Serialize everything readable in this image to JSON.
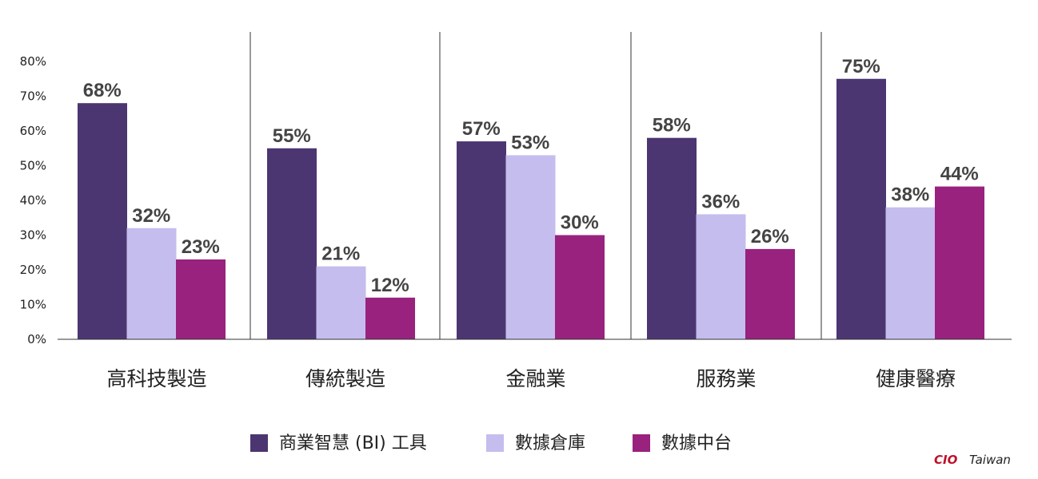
{
  "chart_data": {
    "type": "bar",
    "categories": [
      "高科技製造",
      "傳統製造",
      "金融業",
      "服務業",
      "健康醫療"
    ],
    "series": [
      {
        "name": "商業智慧 (BI) 工具",
        "color": "#4b3671",
        "values": [
          68,
          55,
          57,
          58,
          75
        ]
      },
      {
        "name": "數據倉庫",
        "color": "#c5bdee",
        "values": [
          32,
          21,
          53,
          36,
          38
        ]
      },
      {
        "name": "數據中台",
        "color": "#98227d",
        "values": [
          23,
          12,
          30,
          26,
          44
        ]
      }
    ],
    "y_ticks": [
      "0%",
      "10%",
      "20%",
      "30%",
      "40%",
      "50%",
      "60%",
      "70%",
      "80%"
    ],
    "ylim": [
      0,
      80
    ],
    "value_suffix": "%",
    "grid": false,
    "legend_position": "bottom"
  },
  "watermark": {
    "brand": "CIO",
    "region": "Taiwan",
    "brand_color": "#c0102a"
  }
}
